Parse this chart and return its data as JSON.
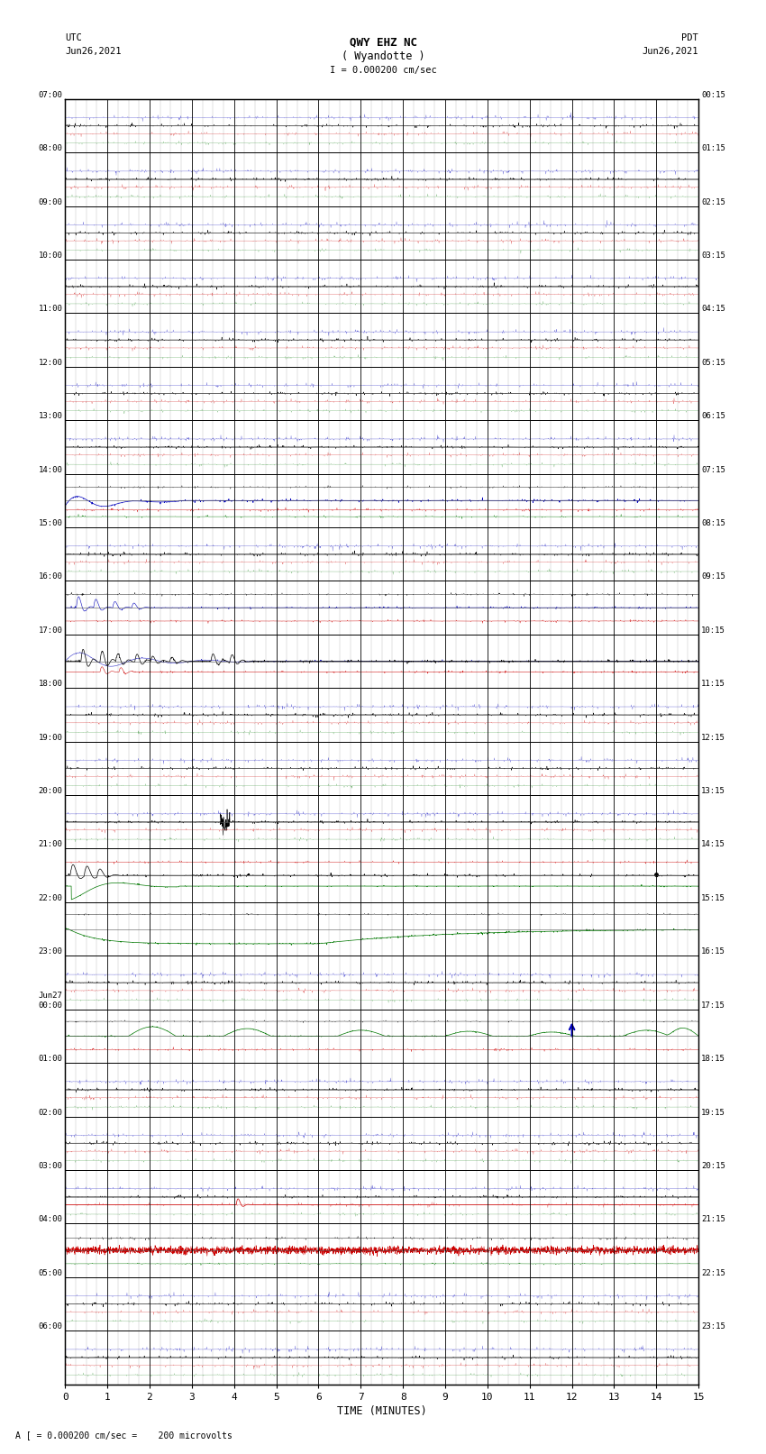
{
  "title_line1": "QWY EHZ NC",
  "title_line2": "( Wyandotte )",
  "scale_label": "I = 0.000200 cm/sec",
  "left_header": "UTC",
  "left_date": "Jun26,2021",
  "right_header": "PDT",
  "right_date": "Jun26,2021",
  "xlabel": "TIME (MINUTES)",
  "bottom_note": "A [ = 0.000200 cm/sec =    200 microvolts",
  "xmin": 0,
  "xmax": 15,
  "num_traces": 24,
  "utc_labels": [
    "07:00",
    "08:00",
    "09:00",
    "10:00",
    "11:00",
    "12:00",
    "13:00",
    "14:00",
    "15:00",
    "16:00",
    "17:00",
    "18:00",
    "19:00",
    "20:00",
    "21:00",
    "22:00",
    "23:00",
    "Jun27\n00:00",
    "01:00",
    "02:00",
    "03:00",
    "04:00",
    "05:00",
    "06:00"
  ],
  "pdt_labels": [
    "00:15",
    "01:15",
    "02:15",
    "03:15",
    "04:15",
    "05:15",
    "06:15",
    "07:15",
    "08:15",
    "09:15",
    "10:15",
    "11:15",
    "12:15",
    "13:15",
    "14:15",
    "15:15",
    "16:15",
    "17:15",
    "18:15",
    "19:15",
    "20:15",
    "21:15",
    "22:15",
    "23:15"
  ],
  "bg_color": "#ffffff",
  "col_black": "#000000",
  "col_blue": "#0000bb",
  "col_red": "#cc0000",
  "col_green": "#007700",
  "col_gray": "#999999",
  "col_grid": "#aaaaaa",
  "fig_width": 8.5,
  "fig_height": 16.13
}
